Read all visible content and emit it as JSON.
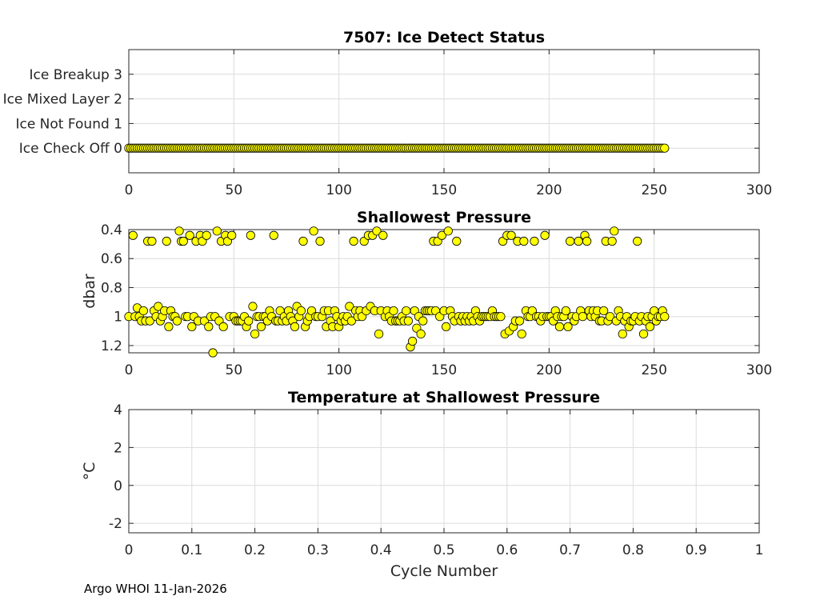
{
  "chart_data": [
    {
      "type": "scatter",
      "title": "7507: Ice Detect Status",
      "xlabel": "",
      "ylabel": "",
      "xlim": [
        0,
        300
      ],
      "ylim": [
        -1,
        4
      ],
      "xticks": [
        0,
        50,
        100,
        150,
        200,
        250,
        300
      ],
      "yticks": [
        {
          "value": 0,
          "label": "Ice Check Off 0"
        },
        {
          "value": 1,
          "label": "Ice Not Found 1"
        },
        {
          "value": 2,
          "label": "Ice Mixed Layer 2"
        },
        {
          "value": 3,
          "label": "Ice Breakup 3"
        }
      ],
      "grid": true,
      "marker_color": "#ffff00",
      "series": [
        {
          "name": "Ice Detect Status",
          "x_range": [
            0,
            255
          ],
          "value": 0
        }
      ]
    },
    {
      "type": "scatter",
      "title": "Shallowest Pressure",
      "xlabel": "",
      "ylabel": "dbar",
      "xlim": [
        0,
        300
      ],
      "ylim": [
        0.4,
        1.25
      ],
      "y_reversed": true,
      "xticks": [
        0,
        50,
        100,
        150,
        200,
        250,
        300
      ],
      "yticks": [
        0.4,
        0.6,
        0.8,
        1,
        1.2
      ],
      "grid": true,
      "marker_color": "#ffff00",
      "series": [
        {
          "name": "Shallowest Pressure",
          "points": [
            [
              0,
              1.0
            ],
            [
              2,
              0.44
            ],
            [
              3,
              1.0
            ],
            [
              4,
              0.94
            ],
            [
              5,
              1.0
            ],
            [
              6,
              1.03
            ],
            [
              7,
              0.96
            ],
            [
              8,
              1.03
            ],
            [
              9,
              0.48
            ],
            [
              10,
              1.03
            ],
            [
              11,
              0.48
            ],
            [
              12,
              0.96
            ],
            [
              13,
              1.0
            ],
            [
              14,
              0.93
            ],
            [
              15,
              1.03
            ],
            [
              16,
              1.0
            ],
            [
              17,
              0.96
            ],
            [
              18,
              0.48
            ],
            [
              19,
              1.07
            ],
            [
              20,
              0.96
            ],
            [
              21,
              1.0
            ],
            [
              22,
              1.0
            ],
            [
              23,
              1.03
            ],
            [
              24,
              0.41
            ],
            [
              25,
              0.48
            ],
            [
              26,
              0.48
            ],
            [
              27,
              1.0
            ],
            [
              28,
              1.0
            ],
            [
              29,
              0.44
            ],
            [
              30,
              1.07
            ],
            [
              31,
              1.0
            ],
            [
              32,
              0.48
            ],
            [
              33,
              1.03
            ],
            [
              34,
              0.44
            ],
            [
              35,
              0.48
            ],
            [
              36,
              1.03
            ],
            [
              37,
              0.44
            ],
            [
              38,
              1.07
            ],
            [
              39,
              1.0
            ],
            [
              40,
              1.25
            ],
            [
              41,
              1.0
            ],
            [
              42,
              0.41
            ],
            [
              43,
              1.03
            ],
            [
              44,
              0.48
            ],
            [
              45,
              1.07
            ],
            [
              46,
              0.44
            ],
            [
              47,
              0.48
            ],
            [
              48,
              1.0
            ],
            [
              49,
              0.44
            ],
            [
              50,
              1.0
            ],
            [
              51,
              1.03
            ],
            [
              52,
              1.03
            ],
            [
              53,
              1.03
            ],
            [
              54,
              1.03
            ],
            [
              55,
              1.0
            ],
            [
              56,
              1.07
            ],
            [
              57,
              1.03
            ],
            [
              58,
              0.44
            ],
            [
              59,
              0.93
            ],
            [
              60,
              1.12
            ],
            [
              61,
              1.0
            ],
            [
              62,
              1.0
            ],
            [
              63,
              1.07
            ],
            [
              64,
              1.0
            ],
            [
              65,
              1.0
            ],
            [
              66,
              1.03
            ],
            [
              67,
              0.96
            ],
            [
              68,
              1.0
            ],
            [
              69,
              0.44
            ],
            [
              70,
              1.03
            ],
            [
              71,
              1.03
            ],
            [
              72,
              0.96
            ],
            [
              73,
              1.03
            ],
            [
              74,
              1.0
            ],
            [
              75,
              1.03
            ],
            [
              76,
              0.96
            ],
            [
              77,
              1.0
            ],
            [
              78,
              1.03
            ],
            [
              79,
              1.07
            ],
            [
              80,
              0.93
            ],
            [
              81,
              1.0
            ],
            [
              82,
              0.96
            ],
            [
              83,
              0.48
            ],
            [
              84,
              1.07
            ],
            [
              85,
              1.03
            ],
            [
              86,
              1.0
            ],
            [
              87,
              0.96
            ],
            [
              88,
              0.41
            ],
            [
              89,
              1.0
            ],
            [
              90,
              1.0
            ],
            [
              91,
              0.48
            ],
            [
              92,
              1.0
            ],
            [
              93,
              0.96
            ],
            [
              94,
              1.07
            ],
            [
              95,
              0.96
            ],
            [
              96,
              1.03
            ],
            [
              97,
              1.07
            ],
            [
              98,
              0.96
            ],
            [
              99,
              1.0
            ],
            [
              100,
              1.07
            ],
            [
              101,
              1.03
            ],
            [
              102,
              1.0
            ],
            [
              103,
              1.03
            ],
            [
              104,
              1.0
            ],
            [
              105,
              0.93
            ],
            [
              106,
              1.03
            ],
            [
              107,
              0.48
            ],
            [
              108,
              0.96
            ],
            [
              109,
              1.0
            ],
            [
              110,
              0.96
            ],
            [
              111,
              1.0
            ],
            [
              112,
              0.48
            ],
            [
              113,
              0.96
            ],
            [
              114,
              0.44
            ],
            [
              115,
              0.93
            ],
            [
              116,
              0.44
            ],
            [
              117,
              0.96
            ],
            [
              118,
              0.41
            ],
            [
              119,
              1.12
            ],
            [
              120,
              0.96
            ],
            [
              121,
              0.44
            ],
            [
              122,
              1.0
            ],
            [
              123,
              0.96
            ],
            [
              124,
              1.0
            ],
            [
              125,
              1.03
            ],
            [
              126,
              0.96
            ],
            [
              127,
              1.03
            ],
            [
              128,
              1.03
            ],
            [
              129,
              1.03
            ],
            [
              130,
              1.0
            ],
            [
              131,
              1.03
            ],
            [
              132,
              0.96
            ],
            [
              133,
              1.03
            ],
            [
              134,
              1.21
            ],
            [
              135,
              1.17
            ],
            [
              136,
              0.96
            ],
            [
              137,
              1.08
            ],
            [
              138,
              1.0
            ],
            [
              139,
              1.12
            ],
            [
              140,
              1.03
            ],
            [
              141,
              0.96
            ],
            [
              142,
              0.96
            ],
            [
              143,
              0.96
            ],
            [
              144,
              0.96
            ],
            [
              145,
              0.48
            ],
            [
              146,
              0.96
            ],
            [
              147,
              0.48
            ],
            [
              148,
              1.0
            ],
            [
              149,
              0.44
            ],
            [
              150,
              0.96
            ],
            [
              151,
              1.07
            ],
            [
              152,
              0.41
            ],
            [
              153,
              0.96
            ],
            [
              154,
              1.0
            ],
            [
              155,
              1.03
            ],
            [
              156,
              0.48
            ],
            [
              157,
              1.0
            ],
            [
              158,
              1.03
            ],
            [
              159,
              1.0
            ],
            [
              160,
              1.03
            ],
            [
              161,
              1.0
            ],
            [
              162,
              1.03
            ],
            [
              163,
              1.0
            ],
            [
              164,
              1.03
            ],
            [
              165,
              0.96
            ],
            [
              166,
              1.0
            ],
            [
              167,
              1.03
            ],
            [
              168,
              1.0
            ],
            [
              169,
              1.0
            ],
            [
              170,
              1.0
            ],
            [
              171,
              1.0
            ],
            [
              172,
              1.0
            ],
            [
              173,
              0.96
            ],
            [
              174,
              1.0
            ],
            [
              175,
              1.0
            ],
            [
              176,
              1.0
            ],
            [
              177,
              1.0
            ],
            [
              178,
              0.48
            ],
            [
              179,
              1.12
            ],
            [
              180,
              0.44
            ],
            [
              181,
              1.1
            ],
            [
              182,
              0.44
            ],
            [
              183,
              1.07
            ],
            [
              184,
              1.03
            ],
            [
              185,
              0.48
            ],
            [
              186,
              1.03
            ],
            [
              187,
              1.12
            ],
            [
              188,
              0.48
            ],
            [
              189,
              0.96
            ],
            [
              190,
              1.0
            ],
            [
              191,
              1.0
            ],
            [
              192,
              0.96
            ],
            [
              193,
              0.48
            ],
            [
              194,
              1.0
            ],
            [
              195,
              1.0
            ],
            [
              196,
              1.03
            ],
            [
              197,
              1.0
            ],
            [
              198,
              0.44
            ],
            [
              199,
              1.0
            ],
            [
              200,
              1.0
            ],
            [
              201,
              1.0
            ],
            [
              202,
              1.03
            ],
            [
              203,
              0.96
            ],
            [
              204,
              1.0
            ],
            [
              205,
              1.07
            ],
            [
              206,
              1.0
            ],
            [
              207,
              1.0
            ],
            [
              208,
              0.96
            ],
            [
              209,
              1.07
            ],
            [
              210,
              0.48
            ],
            [
              211,
              1.0
            ],
            [
              212,
              1.03
            ],
            [
              213,
              1.0
            ],
            [
              214,
              0.48
            ],
            [
              215,
              0.96
            ],
            [
              216,
              1.0
            ],
            [
              217,
              0.44
            ],
            [
              218,
              0.48
            ],
            [
              219,
              0.96
            ],
            [
              220,
              1.0
            ],
            [
              221,
              0.96
            ],
            [
              222,
              1.0
            ],
            [
              223,
              0.96
            ],
            [
              224,
              1.03
            ],
            [
              225,
              1.03
            ],
            [
              226,
              0.96
            ],
            [
              227,
              0.48
            ],
            [
              228,
              1.03
            ],
            [
              229,
              1.0
            ],
            [
              230,
              0.48
            ],
            [
              231,
              0.41
            ],
            [
              232,
              1.03
            ],
            [
              233,
              0.96
            ],
            [
              234,
              1.0
            ],
            [
              235,
              1.12
            ],
            [
              236,
              1.03
            ],
            [
              237,
              1.0
            ],
            [
              238,
              1.07
            ],
            [
              239,
              1.03
            ],
            [
              240,
              1.03
            ],
            [
              241,
              1.0
            ],
            [
              242,
              0.48
            ],
            [
              243,
              1.03
            ],
            [
              244,
              1.0
            ],
            [
              245,
              1.12
            ],
            [
              246,
              1.03
            ],
            [
              247,
              1.0
            ],
            [
              248,
              1.07
            ],
            [
              249,
              1.0
            ],
            [
              250,
              0.96
            ],
            [
              251,
              1.03
            ],
            [
              252,
              1.0
            ],
            [
              253,
              1.0
            ],
            [
              254,
              0.96
            ],
            [
              255,
              1.0
            ]
          ]
        }
      ]
    },
    {
      "type": "scatter",
      "title": "Temperature at Shallowest Pressure",
      "xlabel": "Cycle Number",
      "ylabel": "°C",
      "xlim": [
        0,
        1
      ],
      "ylim": [
        -2.5,
        4
      ],
      "xticks": [
        0,
        0.1,
        0.2,
        0.3,
        0.4,
        0.5,
        0.6,
        0.7,
        0.8,
        0.9,
        1
      ],
      "xticklabels": [
        "0",
        "0.1",
        "0.2",
        "0.3",
        "0.4",
        "0.5",
        "0.6",
        "0.7",
        "0.8",
        "0.9",
        "1"
      ],
      "yticks": [
        -2,
        0,
        2,
        4
      ],
      "grid": true,
      "series": []
    }
  ],
  "footer": "Argo WHOI 11-Jan-2026"
}
